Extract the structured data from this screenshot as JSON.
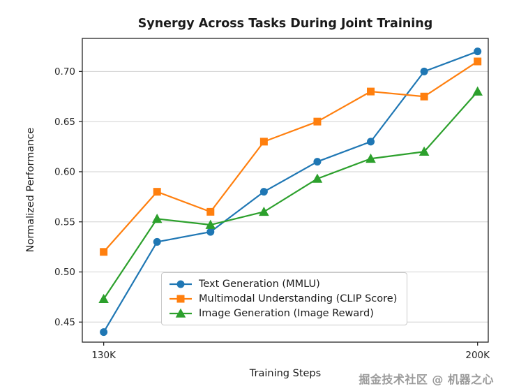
{
  "chart_data": {
    "type": "line",
    "title": "Synergy Across Tasks During Joint Training",
    "xlabel": "Training Steps",
    "ylabel": "Normalized Performance",
    "x": [
      130,
      140,
      150,
      160,
      170,
      180,
      190,
      200
    ],
    "xticks": [
      {
        "value": 130,
        "label": "130K"
      },
      {
        "value": 200,
        "label": "200K"
      }
    ],
    "xlim": [
      126,
      202
    ],
    "ylim": [
      0.43,
      0.733
    ],
    "yticks": [
      0.45,
      0.5,
      0.55,
      0.6,
      0.65,
      0.7
    ],
    "grid": "horizontal",
    "grid_color": "#d0d0d0",
    "axis_color": "#262626",
    "legend_position": "lower center",
    "series": [
      {
        "name": "Text Generation (MMLU)",
        "color": "#1f77b4",
        "marker": "circle",
        "values": [
          0.44,
          0.53,
          0.54,
          0.58,
          0.61,
          0.63,
          0.7,
          0.72
        ]
      },
      {
        "name": "Multimodal Understanding (CLIP Score)",
        "color": "#ff7f0e",
        "marker": "square",
        "values": [
          0.52,
          0.58,
          0.56,
          0.63,
          0.65,
          0.68,
          0.675,
          0.71
        ]
      },
      {
        "name": "Image Generation (Image Reward)",
        "color": "#2ca02c",
        "marker": "triangle",
        "values": [
          0.473,
          0.553,
          0.547,
          0.56,
          0.593,
          0.613,
          0.62,
          0.68
        ]
      }
    ]
  },
  "watermark": {
    "text": "掘金技术社区 @ 机器之心"
  }
}
